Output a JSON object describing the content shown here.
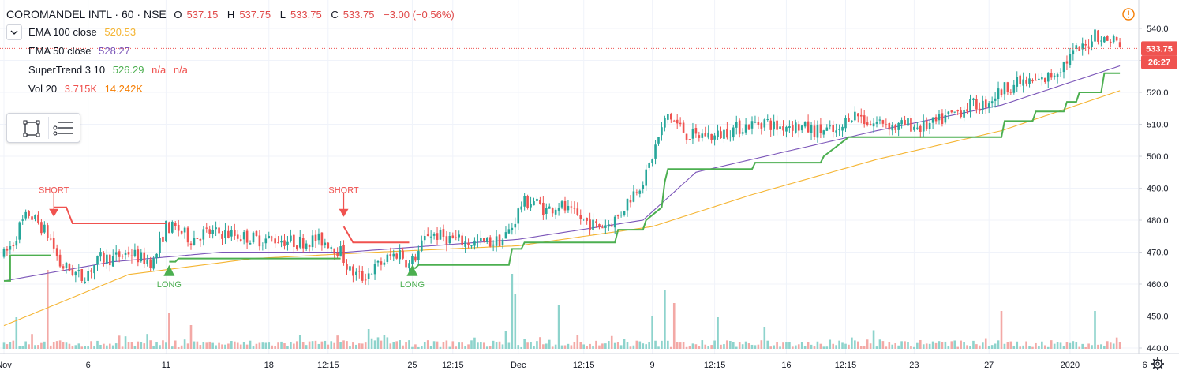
{
  "header": {
    "symbol": "COROMANDEL INTL · 60 · NSE",
    "ohlc": [
      {
        "label": "O",
        "value": "537.15"
      },
      {
        "label": "H",
        "value": "537.75"
      },
      {
        "label": "L",
        "value": "533.75"
      },
      {
        "label": "C",
        "value": "533.75"
      },
      {
        "label": "",
        "value": "−3.00 (−0.56%)"
      }
    ]
  },
  "indicators": [
    {
      "name": "EMA 100 close",
      "values": [
        "520.53"
      ],
      "color": "#f5b533"
    },
    {
      "name": "EMA 50 close",
      "values": [
        "528.27"
      ],
      "color": "#7b55b8"
    },
    {
      "name": "SuperTrend 3 10",
      "values": [
        "526.29",
        "n/a",
        "n/a"
      ],
      "color": "#4caf50",
      "na_color": "#f0524f"
    },
    {
      "name": "Vol 20",
      "values": [
        "3.715K",
        "14.242K"
      ],
      "color": "#f0524f",
      "ma_color": "#f57c00"
    }
  ],
  "price_labels": {
    "last": "533.75",
    "countdown": "26:27",
    "last_color": "#f0524f"
  },
  "colors": {
    "up": "#26a69a",
    "down": "#ef5350",
    "vol_up": "#8dd3cc",
    "vol_down": "#f3a9a6",
    "st_up": "#4caf50",
    "st_down": "#f0524f",
    "ema100": "#f5b533",
    "ema50": "#7b55b8"
  },
  "icons": [
    "chevron-down-icon",
    "rectangle-icon",
    "list-icon",
    "alert-icon",
    "settings-icon"
  ],
  "chart_data": {
    "type": "candlestick",
    "y_axis": {
      "ticks": [
        440,
        450,
        460,
        470,
        480,
        490,
        500,
        510,
        520,
        530,
        540
      ],
      "range": [
        436,
        545
      ]
    },
    "x_axis": {
      "labels": [
        {
          "t": "Nov",
          "bar": 0
        },
        {
          "t": "6",
          "bar": 27
        },
        {
          "t": "11",
          "bar": 52
        },
        {
          "t": "18",
          "bar": 85
        },
        {
          "t": "12:15",
          "bar": 104
        },
        {
          "t": "25",
          "bar": 131
        },
        {
          "t": "12:15",
          "bar": 144
        },
        {
          "t": "Dec",
          "bar": 165
        },
        {
          "t": "12:15",
          "bar": 186
        },
        {
          "t": "9",
          "bar": 208
        },
        {
          "t": "12:15",
          "bar": 228
        },
        {
          "t": "16",
          "bar": 251
        },
        {
          "t": "12:15",
          "bar": 270
        },
        {
          "t": "23",
          "bar": 292
        },
        {
          "t": "27",
          "bar": 316
        },
        {
          "t": "2020",
          "bar": 342
        },
        {
          "t": "6",
          "bar": 366
        }
      ]
    },
    "price_anchors": [
      [
        0,
        469
      ],
      [
        3,
        473
      ],
      [
        5,
        478
      ],
      [
        8,
        482
      ],
      [
        12,
        478
      ],
      [
        15,
        474
      ],
      [
        18,
        466
      ],
      [
        22,
        464
      ],
      [
        25,
        462
      ],
      [
        28,
        465
      ],
      [
        31,
        468
      ],
      [
        35,
        468
      ],
      [
        40,
        470
      ],
      [
        44,
        468
      ],
      [
        48,
        467
      ],
      [
        52,
        478
      ],
      [
        56,
        477
      ],
      [
        60,
        474
      ],
      [
        64,
        476
      ],
      [
        70,
        476
      ],
      [
        76,
        475
      ],
      [
        82,
        474
      ],
      [
        88,
        474
      ],
      [
        94,
        473
      ],
      [
        100,
        474
      ],
      [
        104,
        473
      ],
      [
        108,
        470
      ],
      [
        111,
        464
      ],
      [
        115,
        462
      ],
      [
        119,
        465
      ],
      [
        123,
        468
      ],
      [
        127,
        470
      ],
      [
        130,
        466
      ],
      [
        133,
        470
      ],
      [
        136,
        476
      ],
      [
        140,
        475
      ],
      [
        144,
        474
      ],
      [
        148,
        473
      ],
      [
        152,
        473
      ],
      [
        156,
        473
      ],
      [
        160,
        474
      ],
      [
        163,
        478
      ],
      [
        166,
        485
      ],
      [
        170,
        486
      ],
      [
        174,
        483
      ],
      [
        178,
        485
      ],
      [
        182,
        482
      ],
      [
        186,
        480
      ],
      [
        190,
        478
      ],
      [
        194,
        479
      ],
      [
        197,
        481
      ],
      [
        200,
        486
      ],
      [
        203,
        490
      ],
      [
        206,
        494
      ],
      [
        208,
        500
      ],
      [
        210,
        506
      ],
      [
        213,
        513
      ],
      [
        216,
        510
      ],
      [
        219,
        507
      ],
      [
        222,
        506
      ],
      [
        225,
        507
      ],
      [
        228,
        506
      ],
      [
        232,
        508
      ],
      [
        236,
        509
      ],
      [
        240,
        510
      ],
      [
        244,
        511
      ],
      [
        248,
        509
      ],
      [
        252,
        510
      ],
      [
        256,
        509
      ],
      [
        260,
        508
      ],
      [
        264,
        508
      ],
      [
        268,
        507
      ],
      [
        271,
        513
      ],
      [
        274,
        513
      ],
      [
        278,
        510
      ],
      [
        282,
        511
      ],
      [
        286,
        509
      ],
      [
        290,
        510
      ],
      [
        294,
        509
      ],
      [
        298,
        510
      ],
      [
        302,
        512
      ],
      [
        306,
        514
      ],
      [
        310,
        516
      ],
      [
        314,
        516
      ],
      [
        318,
        519
      ],
      [
        322,
        522
      ],
      [
        326,
        523
      ],
      [
        330,
        523
      ],
      [
        334,
        524
      ],
      [
        338,
        527
      ],
      [
        342,
        531
      ],
      [
        344,
        533
      ],
      [
        347,
        534
      ],
      [
        350,
        539
      ],
      [
        353,
        536
      ],
      [
        356,
        537
      ],
      [
        358,
        534
      ]
    ],
    "ema100_anchors": [
      [
        0,
        447
      ],
      [
        40,
        463
      ],
      [
        80,
        468
      ],
      [
        120,
        470
      ],
      [
        165,
        472
      ],
      [
        208,
        478
      ],
      [
        240,
        488
      ],
      [
        280,
        499
      ],
      [
        320,
        508
      ],
      [
        358,
        520.53
      ]
    ],
    "ema50_anchors": [
      [
        0,
        461
      ],
      [
        35,
        467
      ],
      [
        70,
        470
      ],
      [
        110,
        470
      ],
      [
        165,
        474
      ],
      [
        205,
        480
      ],
      [
        222,
        495
      ],
      [
        280,
        508
      ],
      [
        320,
        516
      ],
      [
        358,
        528.27
      ]
    ],
    "supertrend_segments": [
      {
        "dir": "up",
        "points": [
          [
            0,
            461
          ],
          [
            2,
            461
          ],
          [
            2,
            469
          ],
          [
            15,
            469
          ]
        ]
      },
      {
        "dir": "down",
        "points": [
          [
            16,
            484
          ],
          [
            20,
            484
          ],
          [
            22,
            479
          ],
          [
            52,
            479
          ]
        ]
      },
      {
        "dir": "up",
        "points": [
          [
            53,
            467
          ],
          [
            55,
            467
          ],
          [
            56,
            468
          ],
          [
            108,
            468
          ]
        ]
      },
      {
        "dir": "down",
        "points": [
          [
            109,
            478
          ],
          [
            112,
            473
          ],
          [
            130,
            473
          ]
        ]
      },
      {
        "dir": "up",
        "points": [
          [
            131,
            465
          ],
          [
            132,
            465
          ],
          [
            133,
            466
          ],
          [
            162,
            466
          ],
          [
            163,
            471
          ],
          [
            166,
            471
          ],
          [
            167,
            473
          ],
          [
            196,
            473
          ],
          [
            197,
            477
          ],
          [
            205,
            477
          ],
          [
            206,
            480
          ],
          [
            211,
            484
          ],
          [
            212,
            492
          ],
          [
            213,
            496
          ],
          [
            240,
            496
          ],
          [
            241,
            498
          ],
          [
            262,
            498
          ],
          [
            263,
            500
          ],
          [
            271,
            506
          ],
          [
            320,
            506
          ],
          [
            321,
            511
          ],
          [
            330,
            511
          ],
          [
            331,
            514
          ],
          [
            340,
            514
          ],
          [
            341,
            517
          ],
          [
            344,
            517
          ],
          [
            345,
            520
          ],
          [
            352,
            520
          ],
          [
            353,
            526
          ],
          [
            358,
            526
          ]
        ]
      }
    ],
    "signals": [
      {
        "type": "short",
        "label": "SHORT",
        "bar": 16
      },
      {
        "type": "long",
        "label": "LONG",
        "bar": 53
      },
      {
        "type": "short",
        "label": "SHORT",
        "bar": 109
      },
      {
        "type": "long",
        "label": "LONG",
        "bar": 131
      }
    ],
    "volume_spikes": [
      [
        4,
        40
      ],
      [
        14,
        100
      ],
      [
        53,
        45
      ],
      [
        60,
        30
      ],
      [
        117,
        25
      ],
      [
        163,
        95
      ],
      [
        164,
        70
      ],
      [
        178,
        55
      ],
      [
        208,
        42
      ],
      [
        212,
        75
      ],
      [
        215,
        58
      ],
      [
        229,
        40
      ],
      [
        244,
        28
      ],
      [
        320,
        48
      ],
      [
        350,
        48
      ]
    ]
  }
}
